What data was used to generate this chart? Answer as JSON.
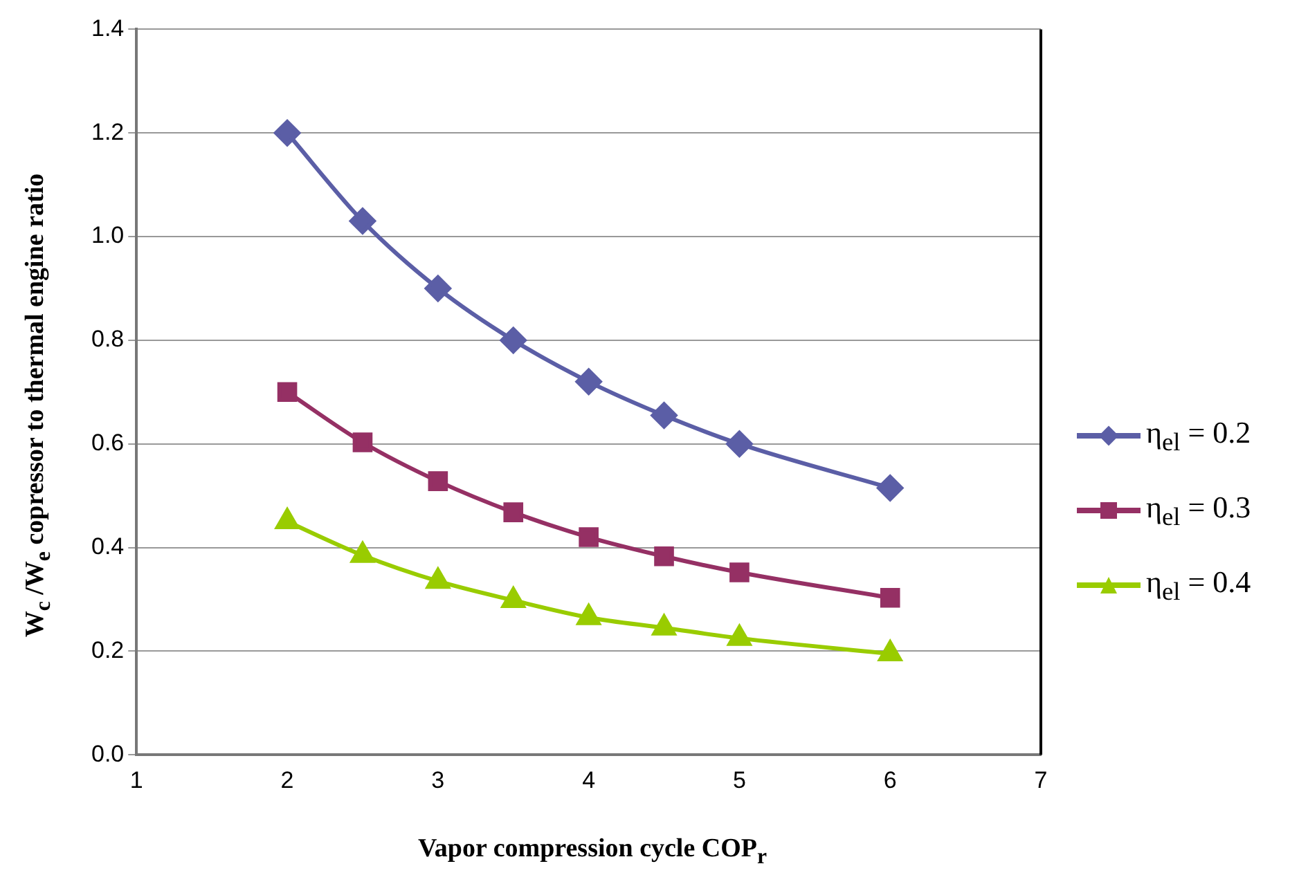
{
  "chart_data": {
    "type": "line",
    "xlabel": "Vapor compression cycle COP$_{r}$",
    "ylabel": "W$_{c}$ /W$_{e}$ copressor to thermal engine ratio",
    "x": [
      2,
      2.5,
      3,
      3.5,
      4,
      4.5,
      5,
      6
    ],
    "series": [
      {
        "name": "η$_{el}$ = 0.2",
        "color": "#5b5ea6",
        "marker": "diamond",
        "values": [
          1.2,
          1.03,
          0.9,
          0.8,
          0.72,
          0.655,
          0.6,
          0.515
        ]
      },
      {
        "name": "η$_{el}$ = 0.3",
        "color": "#953064",
        "marker": "square",
        "values": [
          0.7,
          0.603,
          0.528,
          0.468,
          0.42,
          0.383,
          0.352,
          0.303
        ]
      },
      {
        "name": "η$_{el}$ = 0.4",
        "color": "#99cc00",
        "marker": "triangle",
        "values": [
          0.45,
          0.385,
          0.335,
          0.298,
          0.265,
          0.245,
          0.225,
          0.195
        ]
      }
    ],
    "xlim": [
      1,
      7
    ],
    "xticks": [
      1,
      2,
      3,
      4,
      5,
      6,
      7
    ],
    "ylim": [
      0,
      1.4
    ],
    "yticks": [
      {
        "value": 0,
        "label": "0.0"
      },
      {
        "value": 0.2,
        "label": "0.2"
      },
      {
        "value": 0.4,
        "label": "0.4"
      },
      {
        "value": 0.6,
        "label": "0.6"
      },
      {
        "value": 0.8,
        "label": "0.8"
      },
      {
        "value": 1,
        "label": "1.0"
      },
      {
        "value": 1.2,
        "label": "1.2"
      },
      {
        "value": 1.4,
        "label": "1.4"
      }
    ],
    "grid": "y",
    "legend": "right",
    "line_style": "solid"
  }
}
